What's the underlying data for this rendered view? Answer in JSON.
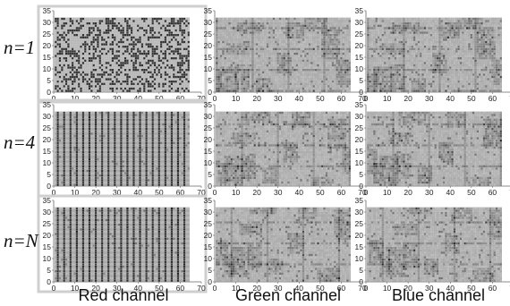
{
  "chart_data": {
    "type": "heatmap",
    "description_scale": "grayscale bit-plane / pixel-channel visualization grid, 64 x 32 cells per panel",
    "rows": [
      {
        "label_prefix": "n=",
        "label_value": "1"
      },
      {
        "label_prefix": "n=",
        "label_value": "4"
      },
      {
        "label_prefix": "n=",
        "label_value": "N"
      }
    ],
    "columns": [
      {
        "label": "Red channel"
      },
      {
        "label": "Green channel"
      },
      {
        "label": "Blue channel"
      }
    ],
    "x_ticks": [
      "0",
      "10",
      "20",
      "30",
      "40",
      "50",
      "60",
      "70"
    ],
    "y_ticks": [
      "0",
      "5",
      "10",
      "15",
      "20",
      "25",
      "30",
      "35"
    ],
    "xlim": [
      0,
      70
    ],
    "ylim": [
      0,
      35
    ],
    "grid_size": {
      "cols": 64,
      "rows": 32
    },
    "colors": {
      "cell_light": "#c9c9c9",
      "cell_dark": "#2a2a2a",
      "cell_grid": "#8a8a8a",
      "red_panel_frame": "#cfcfcf",
      "axis": "#666666"
    }
  }
}
